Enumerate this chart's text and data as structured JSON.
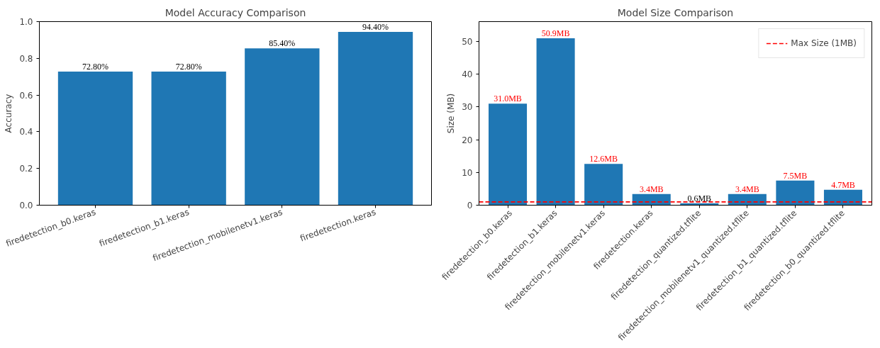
{
  "chart_data": [
    {
      "type": "bar",
      "title": "Model Accuracy Comparison",
      "ylabel": "Accuracy",
      "categories": [
        "firedetection_b0.keras",
        "firedetection_b1.keras",
        "firedetection_mobilenetv1.keras",
        "firedetection.keras"
      ],
      "values": [
        0.728,
        0.728,
        0.854,
        0.944
      ],
      "color": "#1f77b4",
      "value_labels": [
        "72.80%",
        "72.80%",
        "85.40%",
        "94.40%"
      ],
      "ylim": [
        0,
        1
      ],
      "yticks": [
        {
          "value": 0,
          "label": "0.0"
        },
        {
          "value": 0.2,
          "label": "0.2"
        },
        {
          "value": 0.4,
          "label": "0.4"
        },
        {
          "value": 0.6,
          "label": "0.6"
        },
        {
          "value": 0.8,
          "label": "0.8"
        },
        {
          "value": 1,
          "label": "1.0"
        }
      ]
    },
    {
      "type": "bar",
      "title": "Model Size Comparison",
      "ylabel": "Size (MB)",
      "categories": [
        "firedetection_b0.keras",
        "firedetection_b1.keras",
        "firedetection_mobilenetv1.keras",
        "firedetection.keras",
        "firedetection_quantized.tflite",
        "firedetection_mobilenetv1_quantized.tflite",
        "firedetection_b1_quantized.tflite",
        "firedetection_b0_quantized.tflite"
      ],
      "values": [
        31.0,
        50.9,
        12.6,
        3.4,
        0.6,
        3.4,
        7.5,
        4.7
      ],
      "color": "#1f77b4",
      "value_labels": [
        "31.0MB",
        "50.9MB",
        "12.6MB",
        "3.4MB",
        "0.6MB",
        "3.4MB",
        "7.5MB",
        "4.7MB"
      ],
      "ylim": [
        0,
        56
      ],
      "yticks": [
        0,
        10,
        20,
        30,
        40,
        50
      ],
      "ref_lines": [
        {
          "axis": "y",
          "value": 1,
          "label": "Max Size (1MB)",
          "color": "#ff0000",
          "line_style": "dashed"
        }
      ],
      "legend": "top right"
    }
  ]
}
